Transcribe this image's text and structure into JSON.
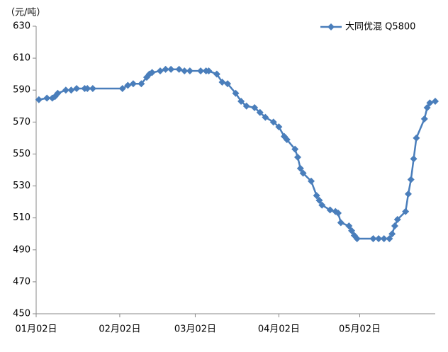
{
  "chart_data": {
    "type": "line",
    "unit_label": "（元/吨）",
    "x": [
      1,
      4,
      6,
      7,
      8,
      11,
      13,
      15,
      18,
      19,
      21,
      32,
      34,
      36,
      39,
      41,
      42,
      43,
      46,
      48,
      50,
      53,
      55,
      57,
      61,
      63,
      64,
      67,
      69,
      71,
      74,
      76,
      78,
      81,
      83,
      85,
      88,
      90,
      92,
      93,
      96,
      97,
      98,
      99,
      102,
      104,
      105,
      106,
      109,
      111,
      112,
      113,
      116,
      117,
      118,
      119,
      125,
      127,
      129,
      131,
      132,
      133,
      134,
      137,
      138,
      139,
      140,
      141,
      144,
      145,
      146,
      148
    ],
    "series": [
      {
        "name": "大同优混 Q5800",
        "color": "#4a7ebb",
        "values": [
          584,
          585,
          585,
          586,
          588,
          590,
          590,
          591,
          591,
          591,
          591,
          591,
          593,
          594,
          594,
          598,
          600,
          601,
          602,
          603,
          603,
          603,
          602,
          602,
          602,
          602,
          602,
          600,
          595,
          594,
          588,
          583,
          580,
          579,
          576,
          573,
          570,
          567,
          561,
          559,
          553,
          548,
          541,
          538,
          533,
          524,
          521,
          518,
          515,
          514,
          513,
          507,
          505,
          502,
          499,
          497,
          497,
          497,
          497,
          497,
          500,
          505,
          509,
          514,
          525,
          534,
          547,
          560,
          572,
          579,
          582,
          583
        ]
      }
    ],
    "xlim": [
      0,
      148
    ],
    "xticks": [
      {
        "value": 0,
        "label": "01月02日"
      },
      {
        "value": 31,
        "label": "02月02日"
      },
      {
        "value": 59,
        "label": "03月02日"
      },
      {
        "value": 90,
        "label": "04月02日"
      },
      {
        "value": 120,
        "label": "05月02日"
      }
    ],
    "ylim": [
      450,
      630
    ],
    "yticks": [
      450,
      470,
      490,
      510,
      530,
      550,
      570,
      590,
      610,
      630
    ],
    "grid": false,
    "legend": "top-right"
  }
}
